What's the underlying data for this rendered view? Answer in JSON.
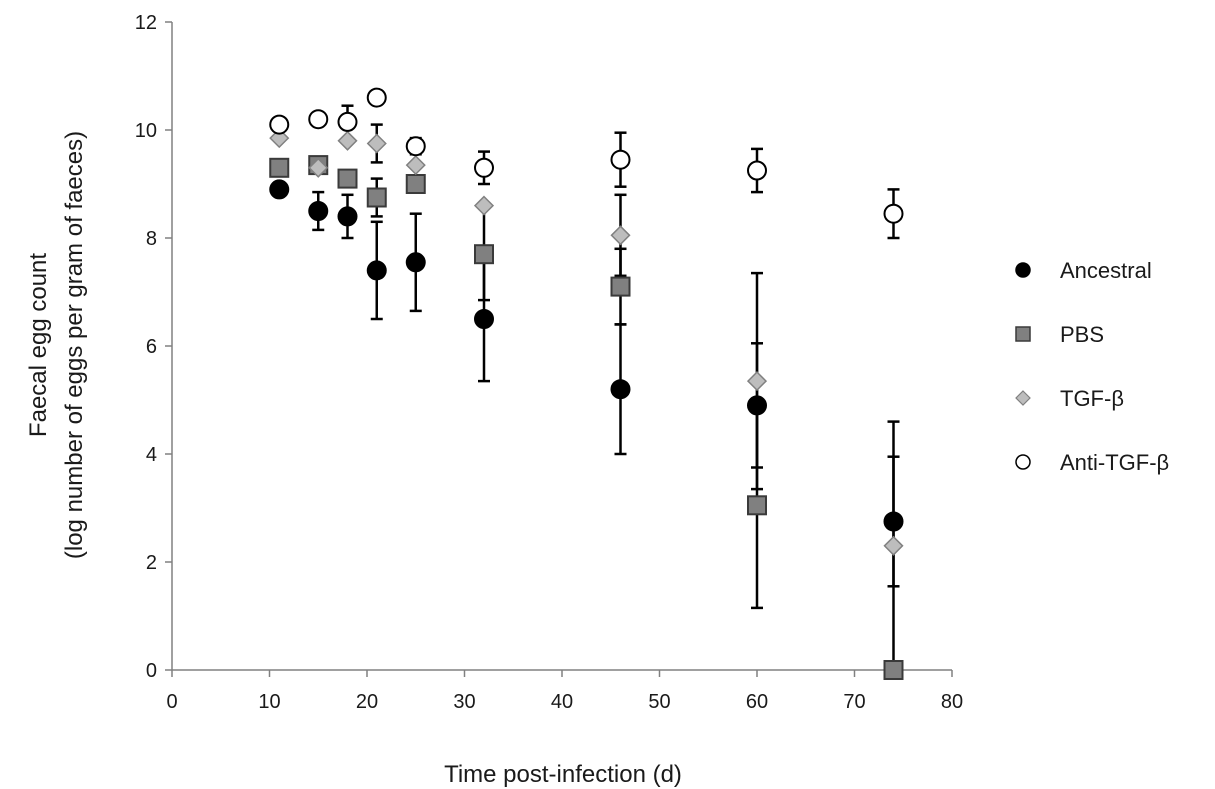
{
  "chart_data": {
    "type": "scatter",
    "title": "",
    "xlabel": "Time post-infection (d)",
    "ylabel_line1": "Faecal egg count",
    "ylabel_line2": "(log number of eggs per gram of faeces)",
    "xlim": [
      0,
      80
    ],
    "ylim": [
      0,
      12
    ],
    "x_ticks": [
      "0",
      "10",
      "20",
      "30",
      "40",
      "50",
      "60",
      "70",
      "80"
    ],
    "y_ticks": [
      "0",
      "2",
      "4",
      "6",
      "8",
      "10",
      "12"
    ],
    "grid": false,
    "legend_position": "right",
    "series": [
      {
        "name": "Ancestral",
        "marker": "circle",
        "fill": "#000000",
        "stroke": "#000000",
        "points": [
          {
            "x": 11,
            "y": 8.9,
            "err": 0
          },
          {
            "x": 15,
            "y": 8.5,
            "err": 0.35
          },
          {
            "x": 18,
            "y": 8.4,
            "err": 0.4
          },
          {
            "x": 21,
            "y": 7.4,
            "err": 0.9
          },
          {
            "x": 25,
            "y": 7.55,
            "err": 0.9
          },
          {
            "x": 32,
            "y": 6.5,
            "err": 1.15
          },
          {
            "x": 46,
            "y": 5.2,
            "err": 1.2
          },
          {
            "x": 60,
            "y": 4.9,
            "err": 1.15
          },
          {
            "x": 74,
            "y": 2.75,
            "err": 1.2
          }
        ]
      },
      {
        "name": "PBS",
        "marker": "square",
        "fill": "#808080",
        "stroke": "#3a3a3a",
        "points": [
          {
            "x": 11,
            "y": 9.3,
            "err": 0
          },
          {
            "x": 15,
            "y": 9.35,
            "err": 0
          },
          {
            "x": 18,
            "y": 9.1,
            "err": 0
          },
          {
            "x": 21,
            "y": 8.75,
            "err": 0.35
          },
          {
            "x": 25,
            "y": 9.0,
            "err": 0
          },
          {
            "x": 32,
            "y": 7.7,
            "err": 0.85
          },
          {
            "x": 46,
            "y": 7.1,
            "err": 0.7
          },
          {
            "x": 60,
            "y": 3.05,
            "err": 1.9
          },
          {
            "x": 74,
            "y": 0.0,
            "err": 0
          }
        ]
      },
      {
        "name": "TGF-β",
        "marker": "diamond",
        "fill": "#bdbdbd",
        "stroke": "#808080",
        "points": [
          {
            "x": 11,
            "y": 9.85,
            "err": 0
          },
          {
            "x": 15,
            "y": 9.3,
            "err": 0
          },
          {
            "x": 18,
            "y": 9.8,
            "err": 0
          },
          {
            "x": 21,
            "y": 9.75,
            "err": 0.35
          },
          {
            "x": 25,
            "y": 9.35,
            "err": 0
          },
          {
            "x": 32,
            "y": 8.6,
            "err": 0
          },
          {
            "x": 46,
            "y": 8.05,
            "err": 0.75
          },
          {
            "x": 60,
            "y": 5.35,
            "err": 2.0
          },
          {
            "x": 74,
            "y": 2.3,
            "err": 2.3
          }
        ]
      },
      {
        "name": "Anti-TGF-β",
        "marker": "open-circle",
        "fill": "#ffffff",
        "stroke": "#000000",
        "points": [
          {
            "x": 11,
            "y": 10.1,
            "err": 0
          },
          {
            "x": 15,
            "y": 10.2,
            "err": 0.1
          },
          {
            "x": 18,
            "y": 10.15,
            "err": 0.3
          },
          {
            "x": 21,
            "y": 10.6,
            "err": 0.1
          },
          {
            "x": 25,
            "y": 9.7,
            "err": 0.15
          },
          {
            "x": 32,
            "y": 9.3,
            "err": 0.3
          },
          {
            "x": 46,
            "y": 9.45,
            "err": 0.5
          },
          {
            "x": 60,
            "y": 9.25,
            "err": 0.4
          },
          {
            "x": 74,
            "y": 8.45,
            "err": 0.45
          }
        ]
      }
    ]
  }
}
